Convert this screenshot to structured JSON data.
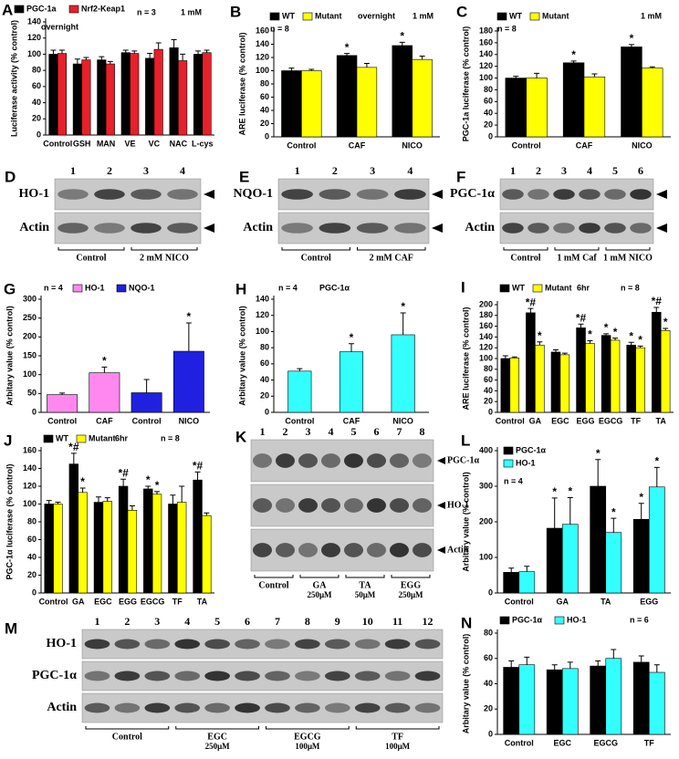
{
  "chart_data": [
    {
      "type": "bar",
      "panel": "A",
      "ylabel": "Luciferase activity (% control)",
      "categories": [
        "Control",
        "GSH",
        "MAN",
        "VE",
        "VC",
        "NAC",
        "L-cys"
      ],
      "series": [
        {
          "name": "PGC-1a",
          "color": "#000000",
          "values": [
            100,
            88,
            93,
            102,
            95,
            108,
            100
          ],
          "errors": [
            5,
            6,
            4,
            3,
            6,
            10,
            4
          ]
        },
        {
          "name": "Nrf2-Keap1",
          "color": "#e8202a",
          "values": [
            101,
            93,
            88,
            101,
            106,
            92,
            102
          ],
          "errors": [
            4,
            3,
            3,
            3,
            8,
            8,
            3
          ]
        }
      ],
      "ylim": [
        0,
        140
      ],
      "yticks": [
        0,
        20,
        40,
        60,
        80,
        100,
        120,
        140
      ],
      "notes": [
        "n = 3",
        "1 mM",
        "overnight"
      ]
    },
    {
      "type": "bar",
      "panel": "B",
      "ylabel": "ARE luciferase (% control)",
      "categories": [
        "Control",
        "CAF",
        "NICO"
      ],
      "series": [
        {
          "name": "WT",
          "color": "#000000",
          "values": [
            100,
            123,
            138
          ],
          "errors": [
            4,
            3,
            5
          ],
          "annotations": [
            null,
            "*",
            "*"
          ]
        },
        {
          "name": "Mutant",
          "color": "#ffff00",
          "values": [
            100,
            105,
            117
          ],
          "errors": [
            2,
            6,
            5
          ],
          "annotations": [
            null,
            null,
            null
          ]
        }
      ],
      "ylim": [
        0,
        160
      ],
      "yticks": [
        0,
        20,
        40,
        60,
        80,
        100,
        120,
        140,
        160
      ],
      "notes": [
        "n = 8",
        "overnight",
        "1 mM"
      ]
    },
    {
      "type": "bar",
      "panel": "C",
      "ylabel": "PGC-1a luciferase (% control)",
      "categories": [
        "Control",
        "CAF",
        "NICO"
      ],
      "series": [
        {
          "name": "WT",
          "color": "#000000",
          "values": [
            100,
            126,
            153
          ],
          "errors": [
            3,
            3,
            4
          ],
          "annotations": [
            null,
            "*",
            "*"
          ]
        },
        {
          "name": "Mutant",
          "color": "#ffff00",
          "values": [
            100,
            102,
            117
          ],
          "errors": [
            8,
            5,
            2
          ],
          "annotations": [
            null,
            null,
            null
          ]
        }
      ],
      "ylim": [
        0,
        180
      ],
      "yticks": [
        0,
        20,
        40,
        60,
        80,
        100,
        120,
        140,
        160,
        180
      ],
      "notes": [
        "n = 8",
        "1 mM"
      ]
    },
    {
      "type": "bar",
      "panel": "G",
      "ylabel": "Arbitary value (% control)",
      "categories": [
        "Control",
        "CAF",
        "Control",
        "NICO"
      ],
      "series": [
        {
          "name": "HO-1",
          "color": "#ff88ee",
          "values": [
            47,
            105,
            null,
            null
          ],
          "errors": [
            4,
            15,
            null,
            null
          ],
          "annotations": [
            null,
            "*",
            null,
            null
          ]
        },
        {
          "name": "NQO-1",
          "color": "#2020e0",
          "values": [
            null,
            null,
            52,
            162
          ],
          "errors": [
            null,
            null,
            35,
            75
          ],
          "annotations": [
            null,
            null,
            null,
            "*"
          ]
        }
      ],
      "ylim": [
        0,
        300
      ],
      "yticks": [
        0,
        50,
        100,
        150,
        200,
        250,
        300
      ],
      "notes": [
        "n = 4"
      ]
    },
    {
      "type": "bar",
      "panel": "H",
      "ylabel": "Arbitary value (% control)",
      "categories": [
        "Control",
        "CAF",
        "NICO"
      ],
      "series": [
        {
          "color": "#33ffff",
          "values": [
            51,
            75,
            96
          ],
          "errors": [
            3,
            10,
            27
          ],
          "annotations": [
            null,
            "*",
            "*"
          ]
        }
      ],
      "ylim": [
        0,
        140
      ],
      "yticks": [
        0,
        20,
        40,
        60,
        80,
        100,
        120,
        140
      ],
      "notes": [
        "n = 4",
        "PGC-1α"
      ]
    },
    {
      "type": "bar",
      "panel": "I",
      "ylabel": "ARE luciferase (% control)",
      "categories": [
        "Control",
        "GA",
        "EGC",
        "EGG",
        "EGCG",
        "TF",
        "TA"
      ],
      "series": [
        {
          "name": "WT",
          "color": "#000000",
          "values": [
            100,
            185,
            112,
            157,
            143,
            125,
            186
          ],
          "errors": [
            5,
            8,
            4,
            7,
            3,
            5,
            9
          ],
          "annotations": [
            null,
            "*#",
            null,
            "*#",
            "*",
            "*",
            "*#"
          ]
        },
        {
          "name": "Mutant",
          "color": "#ffff00",
          "values": [
            101,
            125,
            107,
            128,
            134,
            120,
            152
          ],
          "errors": [
            2,
            6,
            3,
            5,
            4,
            3,
            4
          ],
          "annotations": [
            null,
            "*",
            null,
            "*",
            "*",
            "*",
            "*"
          ]
        }
      ],
      "ylim": [
        0,
        200
      ],
      "yticks": [
        0,
        20,
        40,
        60,
        80,
        100,
        120,
        140,
        160,
        180,
        200
      ],
      "notes": [
        "6hr",
        "n = 8"
      ]
    },
    {
      "type": "bar",
      "panel": "J",
      "ylabel": "PGC-1α luciferase (% control)",
      "categories": [
        "Control",
        "GA",
        "EGC",
        "EGG",
        "EGCG",
        "TF",
        "TA"
      ],
      "series": [
        {
          "name": "WT",
          "color": "#000000",
          "values": [
            100,
            145,
            102,
            120,
            117,
            100,
            127
          ],
          "errors": [
            4,
            12,
            6,
            8,
            3,
            10,
            9
          ],
          "annotations": [
            null,
            "*#",
            null,
            "*#",
            "*",
            null,
            "*#"
          ]
        },
        {
          "name": "Mutant",
          "color": "#ffff00",
          "values": [
            100,
            113,
            103,
            93,
            111,
            102,
            87
          ],
          "errors": [
            2,
            5,
            4,
            5,
            3,
            18,
            3
          ],
          "annotations": [
            null,
            "*",
            null,
            null,
            "*",
            null,
            null
          ]
        }
      ],
      "ylim": [
        0,
        160
      ],
      "yticks": [
        0,
        20,
        40,
        60,
        80,
        100,
        120,
        140,
        160
      ],
      "notes": [
        "6hr",
        "n = 8"
      ]
    },
    {
      "type": "bar",
      "panel": "L",
      "ylabel": "Arbitary value (% control)",
      "categories": [
        "Control",
        "GA",
        "TA",
        "EGG"
      ],
      "series": [
        {
          "name": "PGC-1α",
          "color": "#000000",
          "values": [
            58,
            182,
            300,
            207
          ],
          "errors": [
            12,
            85,
            75,
            45
          ],
          "annotations": [
            null,
            "*",
            "*",
            "*"
          ]
        },
        {
          "name": "HO-1",
          "color": "#33ffff",
          "values": [
            60,
            193,
            170,
            298
          ],
          "errors": [
            15,
            75,
            40,
            55
          ],
          "annotations": [
            null,
            "*",
            "*",
            "*"
          ]
        }
      ],
      "ylim": [
        0,
        400
      ],
      "yticks": [
        0,
        100,
        200,
        300,
        400
      ],
      "notes": [
        "n = 4"
      ]
    },
    {
      "type": "bar",
      "panel": "N",
      "ylabel": "Arbitary value (% control)",
      "categories": [
        "Control",
        "EGC",
        "EGCG",
        "TF"
      ],
      "series": [
        {
          "name": "PGC-1α",
          "color": "#000000",
          "values": [
            53,
            51,
            54,
            57
          ],
          "errors": [
            5,
            4,
            4,
            5
          ]
        },
        {
          "name": "HO-1",
          "color": "#33ffff",
          "values": [
            55,
            52,
            60,
            49
          ],
          "errors": [
            6,
            5,
            7,
            6
          ]
        }
      ],
      "ylim": [
        0,
        80
      ],
      "yticks": [
        0,
        20,
        40,
        60,
        80
      ],
      "notes": [
        "n = 6"
      ]
    }
  ],
  "blots": [
    {
      "panel": "D",
      "lanes": [
        1,
        2,
        3,
        4
      ],
      "rows": [
        "HO-1",
        "Actin"
      ],
      "groups": [
        "Control",
        "2 mM NICO"
      ]
    },
    {
      "panel": "E",
      "lanes": [
        1,
        2,
        3,
        4
      ],
      "rows": [
        "NQO-1",
        "Actin"
      ],
      "groups": [
        "Control",
        "2 mM CAF"
      ]
    },
    {
      "panel": "F",
      "lanes": [
        1,
        2,
        3,
        4,
        5,
        6
      ],
      "rows": [
        "PGC-1α",
        "Actin"
      ],
      "groups": [
        "Control",
        "1 mM Caf",
        "1 mM NICO"
      ]
    },
    {
      "panel": "K",
      "lanes": [
        1,
        2,
        3,
        4,
        5,
        6,
        7,
        8
      ],
      "rows": [
        "PGC-1α",
        "HO-1",
        "Actin"
      ],
      "groups": [
        "Control",
        "GA",
        "TA",
        "EGG"
      ],
      "doses": [
        null,
        "250μM",
        "50μM",
        "250μM"
      ]
    },
    {
      "panel": "M",
      "lanes": [
        1,
        2,
        3,
        4,
        5,
        6,
        7,
        8,
        9,
        10,
        11,
        12
      ],
      "rows": [
        "HO-1",
        "PGC-1α",
        "Actin"
      ],
      "groups": [
        "Control",
        "EGC",
        "EGCG",
        "TF"
      ],
      "doses": [
        null,
        "250μM",
        "100μM",
        "100μM"
      ]
    }
  ]
}
